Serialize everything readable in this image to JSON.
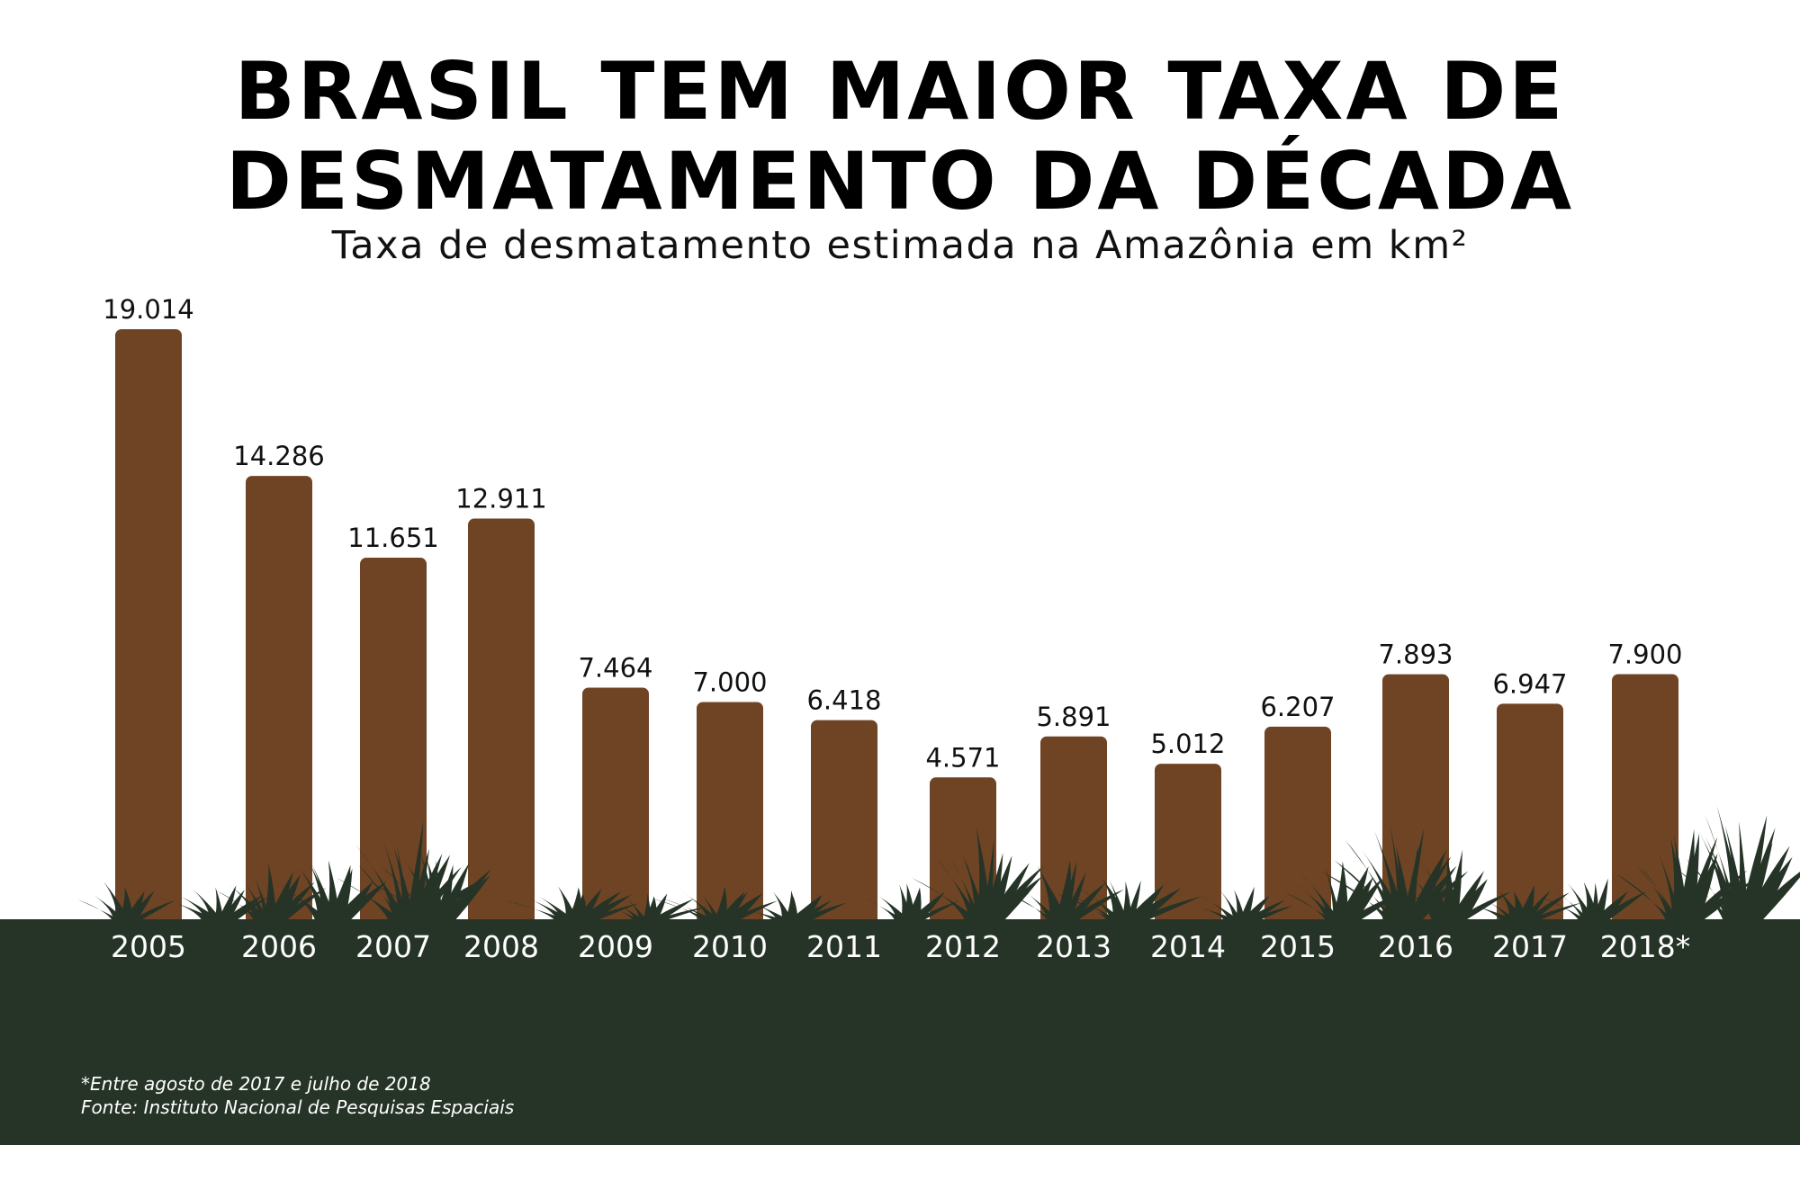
{
  "colors": {
    "bar": "#6f4424",
    "ground": "#263427",
    "grass": "#263427",
    "background": "#ffffff",
    "text": "#111111",
    "year_label": "#ffffff"
  },
  "chart_data": {
    "type": "bar",
    "title": "BRASIL TEM MAIOR TAXA DE DESMATAMENTO DA DÉCADA",
    "title_lines": [
      "BRASIL TEM MAIOR TAXA DE",
      "DESMATAMENTO DA DÉCADA"
    ],
    "subtitle": "Taxa de desmatamento estimada na Amazônia em km²",
    "categories": [
      "2005",
      "2006",
      "2007",
      "2008",
      "2009",
      "2010",
      "2011",
      "2012",
      "2013",
      "2014",
      "2015",
      "2016",
      "2017",
      "2018*"
    ],
    "values": [
      19014,
      14286,
      11651,
      12911,
      7464,
      7000,
      6418,
      4571,
      5891,
      5012,
      6207,
      7893,
      6947,
      7900
    ],
    "value_labels": [
      "19.014",
      "14.286",
      "11.651",
      "12.911",
      "7.464",
      "7.000",
      "6.418",
      "4.571",
      "5.891",
      "5.012",
      "6.207",
      "7.893",
      "6.947",
      "7.900"
    ],
    "xlabel": "",
    "ylabel": "",
    "ylim": [
      0,
      19014
    ],
    "grid": false,
    "legend": "none"
  },
  "footnotes": {
    "note": "*Entre agosto de 2017 e julho de 2018",
    "source": "Fonte: Instituto Nacional de Pesquisas Espaciais"
  }
}
